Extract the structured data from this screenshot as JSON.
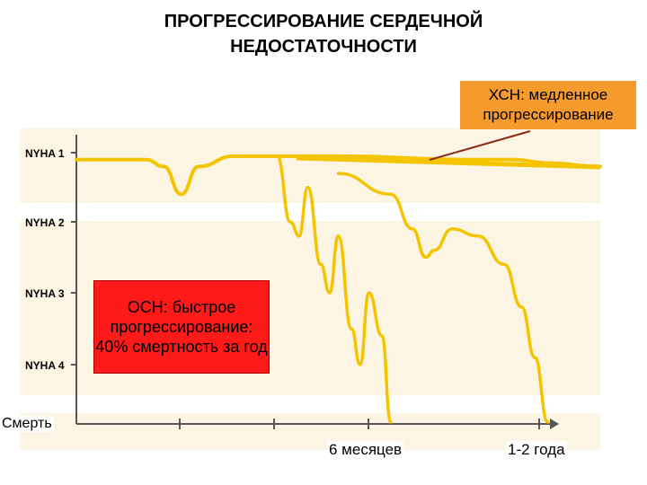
{
  "title": {
    "line1": "ПРОГРЕССИРОВАНИЕ СЕРДЕЧНОЙ",
    "line2": "НЕДОСТАТОЧНОСТИ"
  },
  "callouts": {
    "chronic": "ХСН: медленное прогрессирование",
    "acute": "ОСН: быстрое прогрессирование: 40% смертность за год"
  },
  "colors": {
    "curve": "#f5c400",
    "acute_box": "#ff1a1a",
    "chronic_box": "#f59a2c",
    "pointer": "#8b2a1a"
  },
  "chart_data": {
    "type": "line",
    "title": "ПРОГРЕССИРОВАНИЕ СЕРДЕЧНОЙ НЕДОСТАТОЧНОСТИ",
    "y_ticks": [
      "NYHA 1",
      "NYHA 2",
      "NYHA 3",
      "NYHA 4",
      "Смерть"
    ],
    "x_ticks": [
      "",
      "6 месяцев",
      "",
      "1-2 года"
    ],
    "grid": false,
    "series": [
      {
        "points": [
          [
            0,
            1.1
          ],
          [
            0.8,
            1.1
          ],
          [
            1.0,
            1.2
          ],
          [
            1.2,
            1.6
          ],
          [
            1.4,
            1.2
          ],
          [
            1.8,
            1.05
          ],
          [
            2.3,
            1.05
          ],
          [
            3.0,
            1.05
          ],
          [
            4.5,
            1.1
          ],
          [
            5.0,
            1.1
          ],
          [
            5.4,
            1.15
          ],
          [
            6.0,
            1.2
          ]
        ]
      },
      {
        "points": [
          [
            2.3,
            1.05
          ],
          [
            2.45,
            2.0
          ],
          [
            2.55,
            2.2
          ],
          [
            2.65,
            1.5
          ],
          [
            2.8,
            2.6
          ],
          [
            2.9,
            3.0
          ],
          [
            3.0,
            2.2
          ],
          [
            3.15,
            3.5
          ],
          [
            3.25,
            4.0
          ],
          [
            3.35,
            3.0
          ],
          [
            3.5,
            3.6
          ],
          [
            3.6,
            5.0
          ]
        ]
      },
      {
        "points": [
          [
            3.0,
            1.3
          ],
          [
            3.6,
            1.6
          ],
          [
            3.85,
            2.1
          ],
          [
            4.0,
            2.5
          ],
          [
            4.1,
            2.4
          ],
          [
            4.3,
            2.1
          ],
          [
            4.6,
            2.2
          ],
          [
            4.9,
            2.6
          ],
          [
            5.1,
            3.2
          ],
          [
            5.25,
            3.9
          ],
          [
            5.4,
            5.0
          ]
        ]
      }
    ]
  }
}
